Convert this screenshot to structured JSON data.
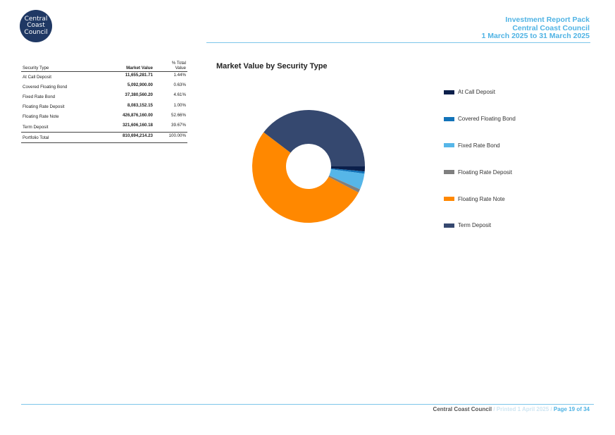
{
  "logo": {
    "line1": "Central",
    "line2": "Coast",
    "line3": "Council"
  },
  "report_header": {
    "line1": "Investment Report Pack",
    "line2": "Central Coast Council",
    "line3": "1 March 2025 to 31 March 2025"
  },
  "table": {
    "headers": {
      "security_type": "Security Type",
      "market_value": "Market Value",
      "pct_line1": "% Total",
      "pct_line2": "Value"
    },
    "rows": [
      {
        "type": "At Call Deposit",
        "value": "11,655,281.71",
        "pct": "1.44%"
      },
      {
        "type": "Covered Floating Bond",
        "value": "5,092,900.00",
        "pct": "0.63%"
      },
      {
        "type": "Fixed Rate Bond",
        "value": "37,380,560.20",
        "pct": "4.61%"
      },
      {
        "type": "Floating Rate Deposit",
        "value": "8,083,152.15",
        "pct": "1.00%"
      },
      {
        "type": "Floating Rate Note",
        "value": "426,876,160.00",
        "pct": "52.66%"
      },
      {
        "type": "Term Deposit",
        "value": "321,606,160.18",
        "pct": "39.67%"
      }
    ],
    "total": {
      "type": "Portfolio Total",
      "value": "810,694,214.23",
      "pct": "100.00%"
    }
  },
  "chart_data": {
    "type": "pie",
    "title": "Market Value by Security Type",
    "donut": true,
    "legend_position": "right",
    "slices": [
      {
        "label": "At Call Deposit",
        "value": 11655281.71,
        "color": "#0b1f4b"
      },
      {
        "label": "Covered Floating Bond",
        "value": 5092900.0,
        "color": "#1273b9"
      },
      {
        "label": "Fixed Rate Bond",
        "value": 37380560.2,
        "color": "#56b6e8"
      },
      {
        "label": "Floating Rate Deposit",
        "value": 8083152.15,
        "color": "#7f7f7f"
      },
      {
        "label": "Floating Rate Note",
        "value": 426876160.0,
        "color": "#ff8800"
      },
      {
        "label": "Term Deposit",
        "value": 321606160.18,
        "color": "#35486f"
      }
    ]
  },
  "footer": {
    "org": "Central Coast Council",
    "printed": " / Printed 1 April 2025 / ",
    "page": "Page 19 of 34"
  }
}
